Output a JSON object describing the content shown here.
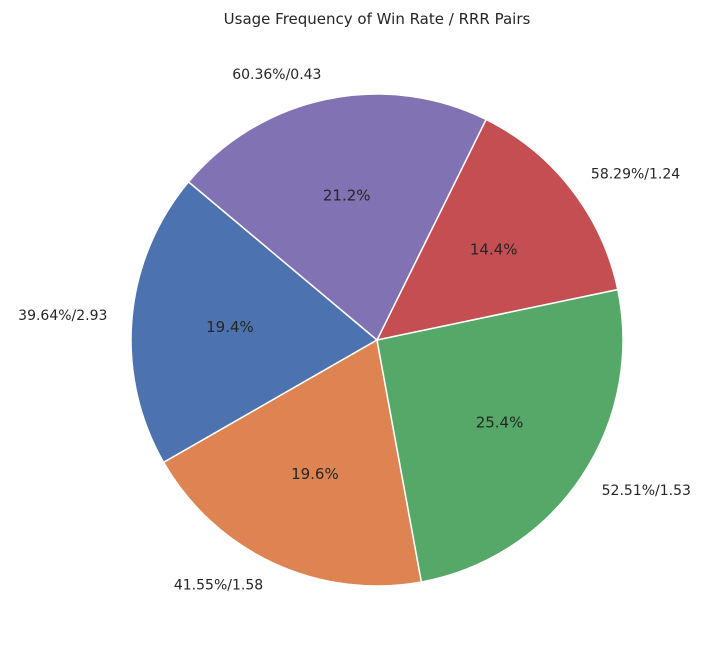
{
  "chart_data": {
    "type": "pie",
    "title": "Usage Frequency of Win Rate / RRR Pairs",
    "labels": [
      "39.64%/2.93",
      "41.55%/1.58",
      "52.51%/1.53",
      "58.29%/1.24",
      "60.36%/0.43"
    ],
    "values": [
      19.4,
      19.6,
      25.4,
      14.4,
      21.2
    ],
    "percent_labels": [
      "19.4%",
      "19.6%",
      "25.4%",
      "14.4%",
      "21.2%"
    ],
    "colors": [
      "#4c72b0",
      "#dd8452",
      "#55a868",
      "#c44e52",
      "#8172b3"
    ],
    "start_angle_deg": 140,
    "direction": "counterclockwise"
  }
}
